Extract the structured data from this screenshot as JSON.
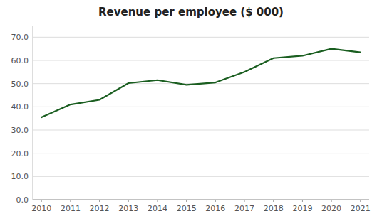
{
  "chart_data": {
    "type": "line",
    "title": "Revenue per employee ($ 000)",
    "x": [
      2010,
      2011,
      2012,
      2013,
      2014,
      2015,
      2016,
      2017,
      2018,
      2019,
      2020,
      2021
    ],
    "values": [
      35.5,
      41.0,
      43.0,
      50.2,
      51.5,
      49.5,
      50.5,
      55.0,
      61.0,
      62.0,
      65.0,
      63.5
    ],
    "color": "#1a5e20",
    "xlim": [
      2009.7,
      2021.3
    ],
    "xticks": [
      2010,
      2011,
      2012,
      2013,
      2014,
      2015,
      2016,
      2017,
      2018,
      2019,
      2020,
      2021
    ],
    "ylim": [
      0,
      75
    ],
    "yticks": [
      {
        "value": 0,
        "label": "0.0"
      },
      {
        "value": 10,
        "label": "10.0"
      },
      {
        "value": 20,
        "label": "20.0"
      },
      {
        "value": 30,
        "label": "30.0"
      },
      {
        "value": 40,
        "label": "40.0"
      },
      {
        "value": 50,
        "label": "50.0"
      },
      {
        "value": 60,
        "label": "60.0"
      },
      {
        "value": 70,
        "label": "70.0"
      }
    ],
    "grid": true
  }
}
